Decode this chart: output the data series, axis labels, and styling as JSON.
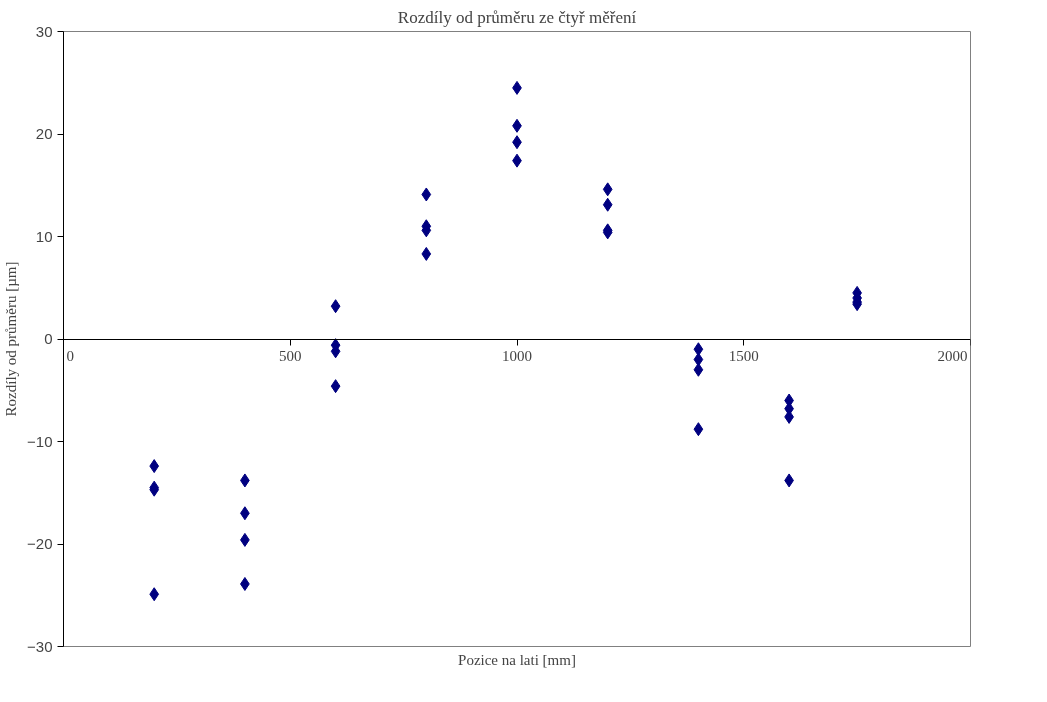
{
  "chart_data": {
    "type": "scatter",
    "title": "Rozdíly od průměru ze čtyř měření",
    "xlabel": "Pozice na lati [mm]",
    "ylabel": "Rozdíly od průměru [µm]",
    "xlim": [
      0,
      2000
    ],
    "xticks": [
      0,
      500,
      1000,
      1500,
      2000
    ],
    "ylim": [
      -30,
      30
    ],
    "yticks": [
      -30,
      -20,
      -10,
      0,
      10,
      20,
      30
    ],
    "grid": false,
    "marker": "diamond",
    "series": [
      {
        "color": "#000080",
        "x": [
          200,
          200,
          200,
          200,
          400,
          400,
          400,
          400,
          600,
          600,
          600,
          600,
          800,
          800,
          800,
          800,
          1000,
          1000,
          1000,
          1000,
          1200,
          1200,
          1200,
          1200,
          1400,
          1400,
          1400,
          1400,
          1600,
          1600,
          1600,
          1600,
          1750,
          1750,
          1750,
          1750
        ],
        "values": [
          -12.4,
          -14.5,
          -14.7,
          -24.9,
          -13.8,
          -17.0,
          -19.6,
          -23.9,
          3.2,
          -0.6,
          -1.2,
          -4.6,
          14.1,
          11.0,
          10.6,
          8.3,
          24.5,
          20.8,
          19.2,
          17.4,
          14.6,
          13.1,
          10.6,
          10.4,
          -1.0,
          -2.0,
          -3.0,
          -8.8,
          -6.0,
          -6.8,
          -7.6,
          -13.8,
          4.5,
          4.0,
          3.6,
          3.4
        ]
      }
    ]
  }
}
